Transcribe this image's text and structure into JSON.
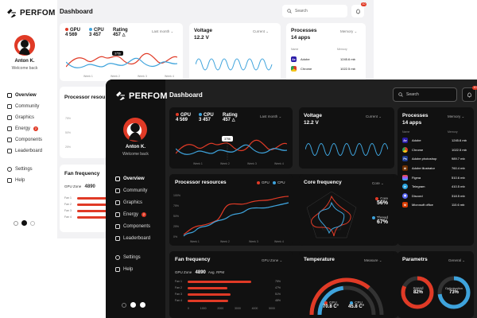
{
  "brand": "PERFOM",
  "light": {
    "header": {
      "title": "Dashboard",
      "search_placeholder": "Search",
      "notif_count": "10"
    },
    "user": {
      "name": "Anton K.",
      "welcome": "Welcome back"
    },
    "nav": [
      {
        "label": "Overview",
        "icon": "overview-icon"
      },
      {
        "label": "Community",
        "icon": "community-icon"
      },
      {
        "label": "Graphics",
        "icon": "graphics-icon"
      },
      {
        "label": "Energy",
        "icon": "energy-icon",
        "badge": "2"
      },
      {
        "label": "Components",
        "icon": "components-icon"
      },
      {
        "label": "Leaderboard",
        "icon": "leaderboard-icon"
      },
      {
        "label": "Settings",
        "icon": "settings-icon"
      },
      {
        "label": "Help",
        "icon": "help-icon"
      }
    ],
    "stats": {
      "gpu_label": "GPU",
      "gpu_value": "4 569",
      "cpu_label": "CPU",
      "cpu_value": "3 457",
      "rating_label": "Rating",
      "rating_value": "457",
      "period": "Last month",
      "tooltip": "3756",
      "weeks": [
        "Week 1",
        "Week 2",
        "Week 3",
        "Week 4"
      ]
    },
    "voltage": {
      "title": "Voltage",
      "value": "12.2 V",
      "dropdown": "Current"
    },
    "processes": {
      "title": "Processes",
      "count": "14 apps",
      "dropdown": "Memory",
      "col_name": "Name",
      "col_mem": "Memory",
      "rows": [
        {
          "name": "Adobe",
          "mem": "1245.6 mb"
        },
        {
          "name": "Chrome",
          "mem": "1022.5 mb"
        }
      ]
    },
    "processor": {
      "title": "Processor resou"
    },
    "fan": {
      "title": "Fan frequency",
      "zone": "GPU Zone",
      "rpm": "4890",
      "fans": [
        "Fan 1",
        "Fan 2",
        "Fan 3",
        "Fan 4"
      ]
    }
  },
  "dark": {
    "header": {
      "title": "Dashboard",
      "search_placeholder": "Search",
      "notif_count": "10"
    },
    "user": {
      "name": "Anton K.",
      "welcome": "Welcome back"
    },
    "nav": [
      {
        "label": "Overview",
        "icon": "overview-icon"
      },
      {
        "label": "Community",
        "icon": "community-icon"
      },
      {
        "label": "Graphics",
        "icon": "graphics-icon"
      },
      {
        "label": "Energy",
        "icon": "energy-icon",
        "badge": "2"
      },
      {
        "label": "Components",
        "icon": "components-icon"
      },
      {
        "label": "Leaderboard",
        "icon": "leaderboard-icon"
      },
      {
        "label": "Settings",
        "icon": "settings-icon"
      },
      {
        "label": "Help",
        "icon": "help-icon"
      }
    ],
    "stats": {
      "gpu_label": "GPU",
      "gpu_value": "4 569",
      "cpu_label": "CPU",
      "cpu_value": "3 457",
      "rating_label": "Rating",
      "rating_value": "457",
      "period": "Last month",
      "tooltip": "3756",
      "weeks": [
        "Week 1",
        "Week 2",
        "Week 3",
        "Week 4"
      ]
    },
    "voltage": {
      "title": "Voltage",
      "value": "12.2 V",
      "dropdown": "Current"
    },
    "processes": {
      "title": "Processes",
      "count": "14 apps",
      "dropdown": "Memory",
      "col_name": "Name",
      "col_mem": "Memory",
      "rows": [
        {
          "name": "Adobe",
          "mem": "1245.6 mb",
          "icon": "Ae",
          "color": "#2b1ca8"
        },
        {
          "name": "Chrome",
          "mem": "1022.5 mb",
          "icon": "",
          "color": "#e03a26"
        },
        {
          "name": "Adobe photoshop",
          "mem": "989.7 mb",
          "icon": "Ps",
          "color": "#1c3b8f"
        },
        {
          "name": "Adobe illustrator",
          "mem": "760.4 mb",
          "icon": "Ai",
          "color": "#6b2d00"
        },
        {
          "name": "Figma",
          "mem": "510.6 mb",
          "icon": "F",
          "color": "#2b2b2b"
        },
        {
          "name": "Telegram",
          "mem": "410.5 mb",
          "icon": "T",
          "color": "#2aa3de"
        },
        {
          "name": "Discord",
          "mem": "318.5 mb",
          "icon": "D",
          "color": "#5865f2"
        },
        {
          "name": "Microsoft office",
          "mem": "110.6 mb",
          "icon": "M",
          "color": "#d83b01"
        }
      ]
    },
    "processor": {
      "title": "Processor resources",
      "legend_gpu": "GPU",
      "legend_cpu": "CPU",
      "y_ticks": [
        "100%",
        "75%",
        "50%",
        "25%",
        "0%"
      ],
      "x_ticks": [
        "Week 1",
        "Week 2",
        "Week 3",
        "Week 4"
      ]
    },
    "core": {
      "title": "Core frequency",
      "dropdown": "Core",
      "core_label": "Core",
      "core_value": "56%",
      "thread_label": "Thread",
      "thread_value": "67%"
    },
    "fan": {
      "title": "Fan frequency",
      "dropdown": "GPU Zone",
      "zone": "GPU Zone",
      "rpm": "4890",
      "rpm_unit": "Avg. RPM",
      "fans": [
        {
          "name": "Fan 1",
          "pct": "75%",
          "value": 0.75
        },
        {
          "name": "Fan 2",
          "pct": "47%",
          "value": 0.47
        },
        {
          "name": "Fan 3",
          "pct": "51%",
          "value": 0.51
        },
        {
          "name": "Fan 4",
          "pct": "48%",
          "value": 0.48
        }
      ],
      "x_ticks": [
        "0",
        "1000",
        "2000",
        "3000",
        "4000",
        "5000"
      ]
    },
    "temperature": {
      "title": "Temperature",
      "dropdown": "Measure",
      "gpu_label": "GPU",
      "gpu_value": "70.8 C°",
      "cpu_label": "CPU",
      "cpu_value": "45.8 C°",
      "gpu_level": 0.72,
      "cpu_level": 0.46
    },
    "params": {
      "title": "Parametrs",
      "dropdown": "General",
      "speed_label": "Speed",
      "speed_value": "82%",
      "speed_level": 0.82,
      "opt_label": "Optimisation",
      "opt_value": "73%",
      "opt_level": 0.73
    }
  },
  "colors": {
    "accent": "#e03a26",
    "blue": "#3ea3dc",
    "dark_bg": "#202020",
    "dark_card": "#111111",
    "light_bg": "#f2f2f4"
  }
}
